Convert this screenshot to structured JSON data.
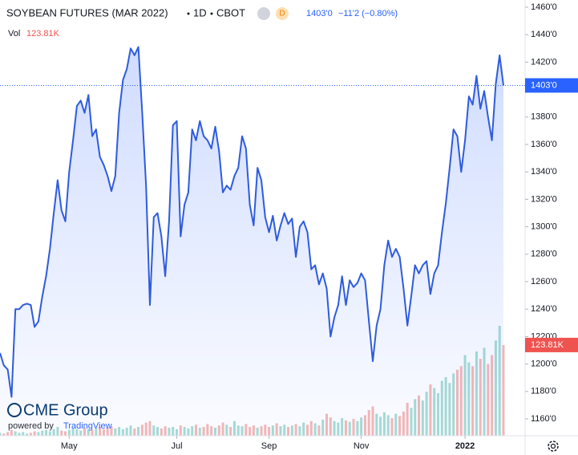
{
  "header": {
    "symbol": "SOYBEAN FUTURES (MAR 2022)",
    "interval": "1D",
    "exchange": "CBOT",
    "badge": "D",
    "last": "1403'0",
    "change": "−11'2 (−0.80%)",
    "vol_title": "Vol",
    "vol_value": "123.81K"
  },
  "branding": {
    "logo": "CME Group",
    "powered": "powered by",
    "brand": "TradingView"
  },
  "chart_data": {
    "type": "line",
    "series": [
      {
        "name": "SOYBEAN FUTURES (MAR 2022)",
        "color": "#2e5bde",
        "values": [
          1208,
          1199,
          1196,
          1176,
          1240,
          1240,
          1243,
          1244,
          1243,
          1227,
          1231,
          1249,
          1264,
          1284,
          1310,
          1334,
          1312,
          1304,
          1340,
          1363,
          1388,
          1392,
          1383,
          1396,
          1366,
          1371,
          1351,
          1345,
          1337,
          1326,
          1337,
          1383,
          1407,
          1415,
          1430,
          1425,
          1431,
          1383,
          1330,
          1243,
          1307,
          1310,
          1293,
          1264,
          1304,
          1374,
          1377,
          1293,
          1316,
          1325,
          1371,
          1363,
          1377,
          1366,
          1363,
          1357,
          1373,
          1355,
          1325,
          1330,
          1327,
          1337,
          1343,
          1366,
          1357,
          1316,
          1301,
          1343,
          1334,
          1307,
          1296,
          1308,
          1290,
          1301,
          1310,
          1302,
          1306,
          1278,
          1300,
          1304,
          1296,
          1269,
          1272,
          1258,
          1266,
          1255,
          1220,
          1234,
          1243,
          1264,
          1243,
          1261,
          1256,
          1259,
          1266,
          1261,
          1231,
          1202,
          1228,
          1240,
          1272,
          1290,
          1278,
          1284,
          1278,
          1255,
          1228,
          1249,
          1272,
          1266,
          1272,
          1275,
          1251,
          1266,
          1272,
          1296,
          1317,
          1343,
          1371,
          1366,
          1340,
          1363,
          1395,
          1389,
          1410,
          1386,
          1399,
          1380,
          1363,
          1404,
          1425,
          1403
        ]
      },
      {
        "name": "Vol",
        "colors": {
          "up": "#a8dcd4",
          "down": "#f5b8b6"
        },
        "values": [
          4000,
          3000,
          5000,
          8000,
          6000,
          4000,
          5000,
          3000,
          4000,
          6000,
          5000,
          7000,
          8000,
          6000,
          9000,
          12000,
          7000,
          6000,
          8000,
          10000,
          9000,
          7000,
          11000,
          9000,
          8000,
          10000,
          12000,
          9000,
          11000,
          13000,
          10000,
          12000,
          9000,
          11000,
          14000,
          10000,
          12000,
          15000,
          18000,
          20000,
          14000,
          12000,
          10000,
          13000,
          11000,
          12000,
          9000,
          14000,
          12000,
          10000,
          13000,
          15000,
          11000,
          12000,
          16000,
          13000,
          11000,
          14000,
          18000,
          15000,
          12000,
          20000,
          14000,
          13000,
          16000,
          12000,
          14000,
          11000,
          13000,
          15000,
          12000,
          14000,
          17000,
          13000,
          15000,
          12000,
          14000,
          16000,
          13000,
          18000,
          15000,
          20000,
          17000,
          14000,
          22000,
          30000,
          25000,
          20000,
          18000,
          24000,
          21000,
          19000,
          23000,
          20000,
          25000,
          28000,
          35000,
          40000,
          30000,
          26000,
          32000,
          28000,
          24000,
          30000,
          27000,
          33000,
          45000,
          38000,
          50000,
          55000,
          48000,
          60000,
          70000,
          65000,
          58000,
          75000,
          80000,
          72000,
          85000,
          90000,
          95000,
          110000,
          100000,
          95000,
          115000,
          105000,
          120000,
          98000,
          110000,
          130000,
          150000,
          123810
        ]
      }
    ],
    "last_price": {
      "value": 1403,
      "label": "1403'0",
      "color": "#2962ff"
    },
    "last_volume": {
      "value": 123810,
      "label": "123.81K",
      "color": "#ef5350"
    },
    "xlim": [
      0,
      131
    ],
    "xticks": [
      {
        "value": 18,
        "label": "May"
      },
      {
        "value": 46,
        "label": "Jul"
      },
      {
        "value": 70,
        "label": "Sep"
      },
      {
        "value": 94,
        "label": "Nov"
      },
      {
        "value": 121,
        "label": "2022"
      }
    ],
    "ylim": [
      1160,
      1460
    ],
    "yticks": [
      {
        "value": 1160,
        "label": "1160'0"
      },
      {
        "value": 1180,
        "label": "1180'0"
      },
      {
        "value": 1200,
        "label": "1200'0"
      },
      {
        "value": 1220,
        "label": "1220'0"
      },
      {
        "value": 1240,
        "label": "1240'0"
      },
      {
        "value": 1260,
        "label": "1260'0"
      },
      {
        "value": 1280,
        "label": "1280'0"
      },
      {
        "value": 1300,
        "label": "1300'0"
      },
      {
        "value": 1320,
        "label": "1320'0"
      },
      {
        "value": 1340,
        "label": "1340'0"
      },
      {
        "value": 1360,
        "label": "1360'0"
      },
      {
        "value": 1380,
        "label": "1380'0"
      },
      {
        "value": 1400,
        "label": "1400'0"
      },
      {
        "value": 1420,
        "label": "1420'0"
      },
      {
        "value": 1440,
        "label": "1440'0"
      },
      {
        "value": 1460,
        "label": "1460'0"
      }
    ],
    "grid": false
  }
}
